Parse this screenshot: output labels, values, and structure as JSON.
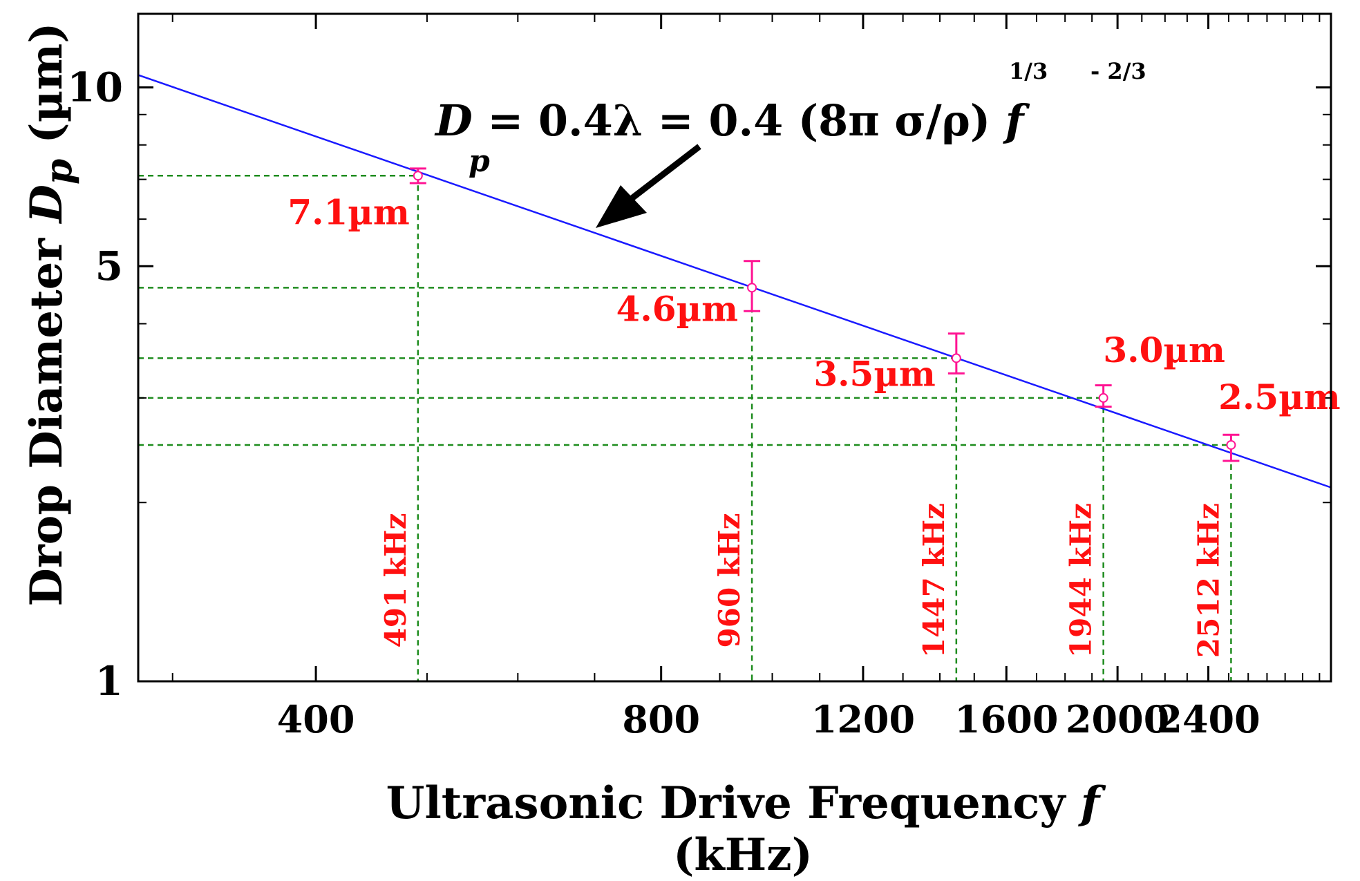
{
  "chart_data": {
    "type": "scatter",
    "title": "",
    "xlabel_prefix": "Ultrasonic Drive Frequency ",
    "xlabel_var": "f",
    "xlabel_suffix": " (kHz)",
    "ylabel_prefix": "Drop Diameter ",
    "ylabel_var": "D",
    "ylabel_sub": "p",
    "ylabel_suffix": " (µm)",
    "x_scale": "log",
    "y_scale": "log",
    "xlim": [
      280,
      3070
    ],
    "ylim": [
      1,
      13.3
    ],
    "x_ticks": [
      400,
      800,
      1200,
      1600,
      2000,
      2400
    ],
    "x_tick_labels": [
      "400",
      "800",
      "1200",
      "1600",
      "2000",
      "2400"
    ],
    "y_ticks": [
      1,
      5,
      10
    ],
    "y_tick_labels": [
      "1",
      "5",
      "10"
    ],
    "fit_line": {
      "name": "Dp = 0.4λ = 0.4 (8πσ/ρ)^(1/3) f^(-2/3)",
      "color": "#1a1aff",
      "x": [
        280,
        3070
      ],
      "y": [
        10.49,
        2.12
      ]
    },
    "points": [
      {
        "frequency_khz": 491,
        "diameter_um": 7.1,
        "err_low": 6.9,
        "err_high": 7.3,
        "label": "7.1µm",
        "freq_label": "491 kHz"
      },
      {
        "frequency_khz": 960,
        "diameter_um": 4.6,
        "err_low": 4.2,
        "err_high": 5.1,
        "label": "4.6µm",
        "freq_label": "960 kHz"
      },
      {
        "frequency_khz": 1447,
        "diameter_um": 3.5,
        "err_low": 3.3,
        "err_high": 3.85,
        "label": "3.5µm",
        "freq_label": "1447 kHz"
      },
      {
        "frequency_khz": 1944,
        "diameter_um": 3.0,
        "err_low": 2.9,
        "err_high": 3.15,
        "label": "3.0µm",
        "freq_label": "1944 kHz"
      },
      {
        "frequency_khz": 2512,
        "diameter_um": 2.5,
        "err_low": 2.35,
        "err_high": 2.6,
        "label": "2.5µm",
        "freq_label": "2512 kHz"
      }
    ],
    "guide_line_color": "#1e8c1e",
    "point_color": "#ff1493",
    "label_color": "#ff1010",
    "formula": {
      "main_lhs": "D",
      "sub": "p",
      "main_rhs": " = 0.4λ = 0.4 (8π σ/ρ)  ",
      "var": "f",
      "exp1": "1/3",
      "exp2": "- 2/3"
    }
  }
}
